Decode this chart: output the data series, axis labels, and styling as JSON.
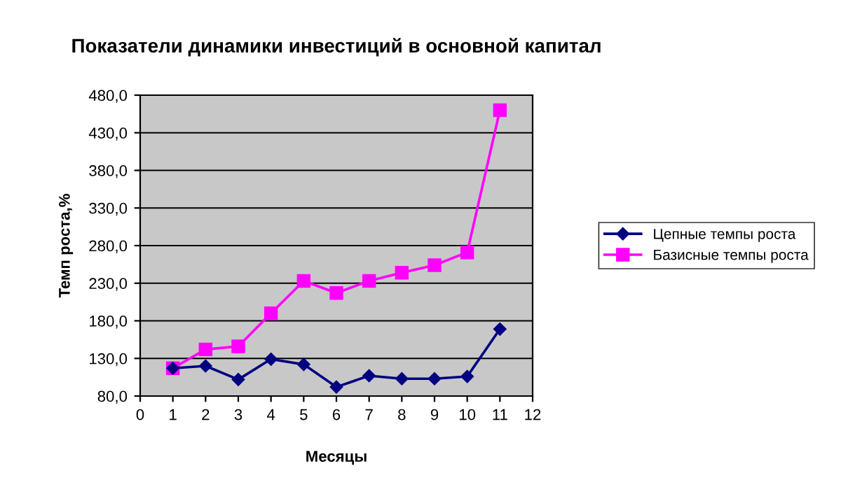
{
  "chart_data": {
    "type": "line",
    "title": "Показатели динамики инвестиций в основной капитал",
    "xlabel": "Месяцы",
    "ylabel": "Темп роста,%",
    "x": [
      1,
      2,
      3,
      4,
      5,
      6,
      7,
      8,
      9,
      10,
      11
    ],
    "series": [
      {
        "name": "Цепные темпы роста",
        "color": "#000080",
        "marker": "diamond",
        "values": [
          117,
          120,
          102,
          129,
          122,
          92,
          107,
          103,
          103,
          106,
          169
        ]
      },
      {
        "name": "Базисные темпы роста",
        "color": "#ff00ff",
        "marker": "square",
        "values": [
          117,
          142,
          146,
          190,
          233,
          217,
          233,
          244,
          254,
          271,
          460
        ]
      }
    ],
    "xlim": [
      0,
      12
    ],
    "xticks": [
      0,
      1,
      2,
      3,
      4,
      5,
      6,
      7,
      8,
      9,
      10,
      11,
      12
    ],
    "ylim": [
      80,
      480
    ],
    "yticks": [
      {
        "value": 80,
        "label": "80,0"
      },
      {
        "value": 130,
        "label": "130,0"
      },
      {
        "value": 180,
        "label": "180,0"
      },
      {
        "value": 230,
        "label": "230,0"
      },
      {
        "value": 280,
        "label": "280,0"
      },
      {
        "value": 330,
        "label": "330,0"
      },
      {
        "value": 380,
        "label": "380,0"
      },
      {
        "value": 430,
        "label": "430,0"
      },
      {
        "value": 480,
        "label": "480,0"
      }
    ],
    "grid": "y",
    "legend": "right",
    "line_style": "solid"
  }
}
